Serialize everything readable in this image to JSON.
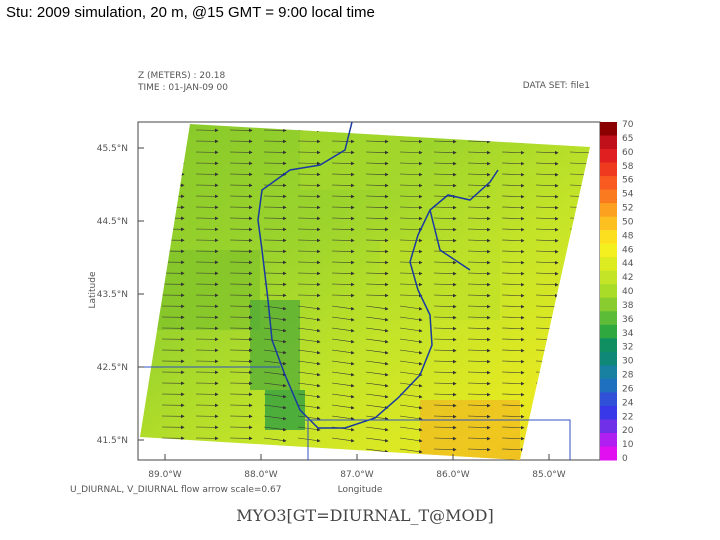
{
  "slide_title": "Stu: 2009 simulation, 20 m, @15 GMT = 9:00 local time",
  "plot": {
    "header_left": [
      "Z (METERS) : 20.18",
      "TIME : 01-JAN-09 00"
    ],
    "header_right": "DATA SET: file1",
    "y_axis_label": "Latitude",
    "x_axis_label": "Longitude",
    "lat_labels": [
      "45.5°N",
      "44.5°N",
      "43.5°N",
      "42.5°N",
      "41.5°N"
    ],
    "lon_labels": [
      "89.0°W",
      "88.0°W",
      "87.0°W",
      "86.0°W",
      "85.0°W"
    ],
    "footnote": "U_DIURNAL, V_DIURNAL  flow arrow scale=0.67",
    "variable": "MYO3[GT=DIURNAL_T@MOD]"
  },
  "colorbar": {
    "labels": [
      "70",
      "65",
      "60",
      "58",
      "56",
      "54",
      "52",
      "50",
      "48",
      "46",
      "44",
      "42",
      "40",
      "38",
      "36",
      "34",
      "32",
      "30",
      "28",
      "26",
      "24",
      "22",
      "20",
      "10",
      "0"
    ],
    "colors": [
      "#8b0000",
      "#c0101a",
      "#e02020",
      "#f03a20",
      "#f85a20",
      "#fa7a20",
      "#fca020",
      "#fcc020",
      "#fce020",
      "#f4f020",
      "#dcec20",
      "#c4e428",
      "#a8dc28",
      "#88cc30",
      "#5cbc38",
      "#30a840",
      "#109060",
      "#108878",
      "#1880a0",
      "#2070c0",
      "#3050d8",
      "#3838e8",
      "#7030e8",
      "#b020f0",
      "#e010f0"
    ]
  }
}
